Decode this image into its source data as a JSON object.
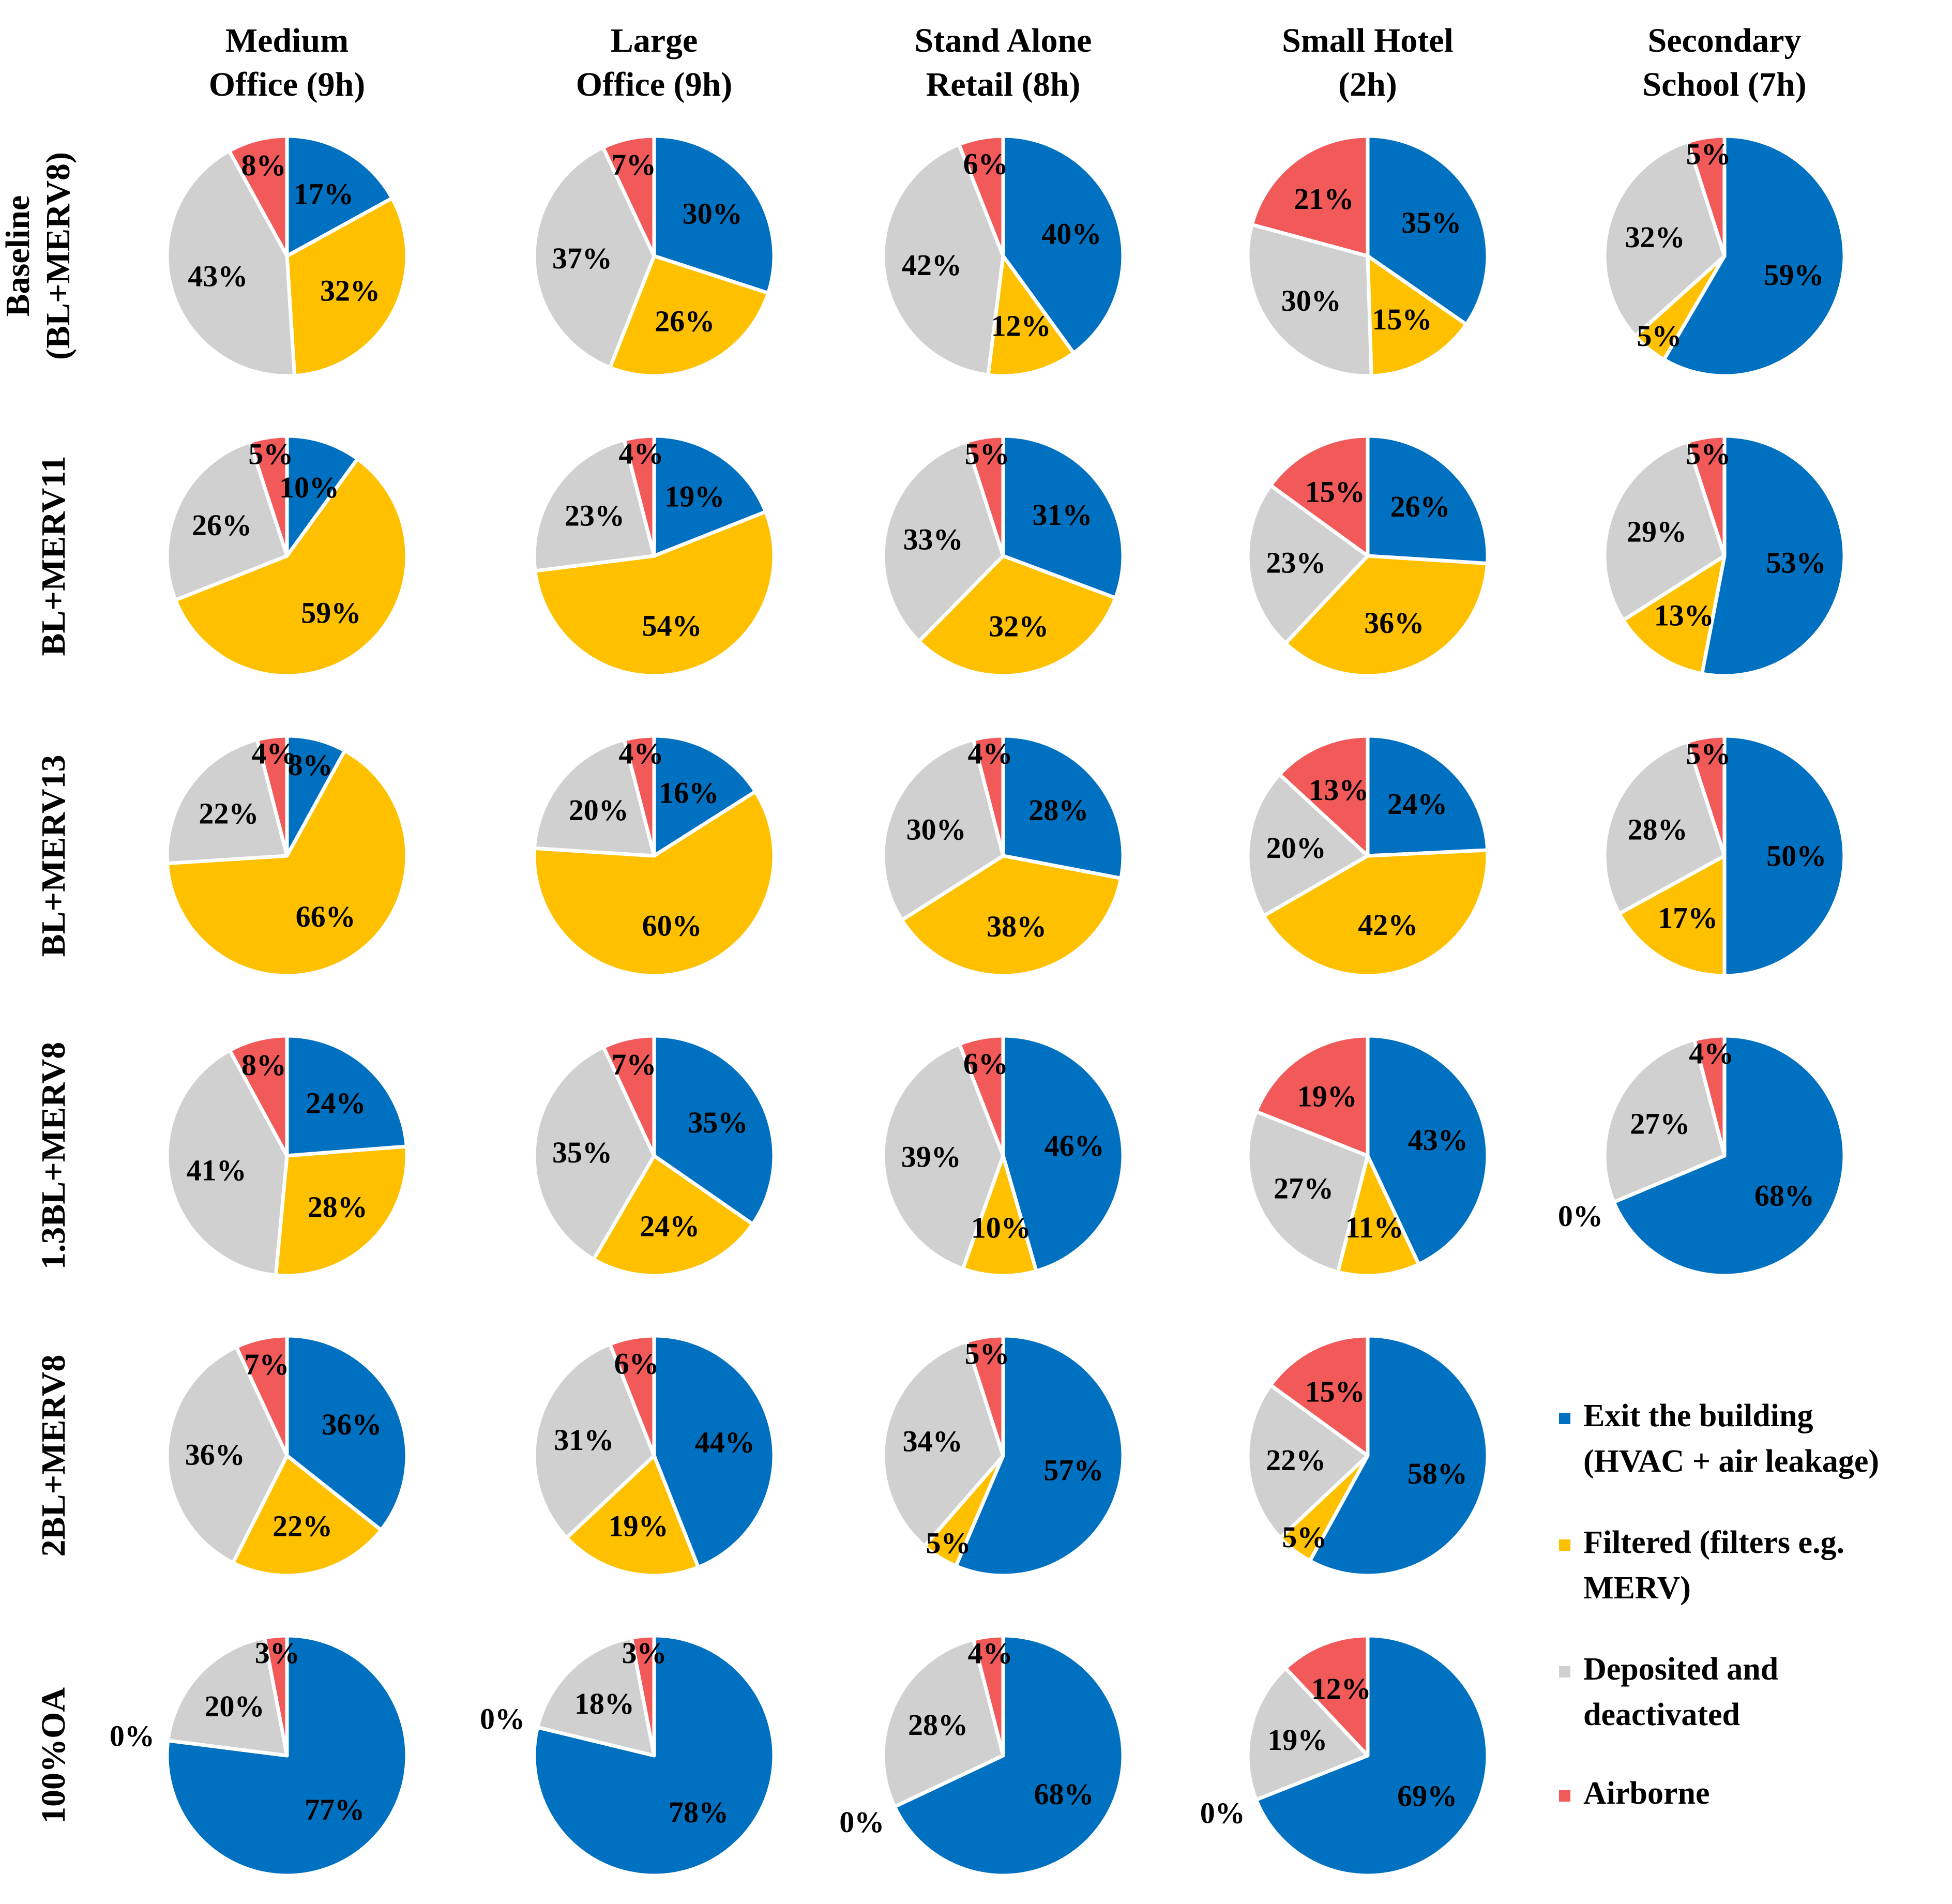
{
  "chart_data": {
    "type": "pie",
    "title": "",
    "category_order": [
      "Exit the building (HVAC + air leakage)",
      "Filtered (filters e.g. MERV)",
      "Deposited and deactivated",
      "Airborne"
    ],
    "colors": {
      "exit": "#0070c0",
      "filtered": "#ffc000",
      "deposited": "#d0d0d0",
      "airborne": "#f25a5a"
    },
    "legend": {
      "position": "right",
      "items": [
        {
          "key": "exit",
          "lines": [
            "Exit the building",
            "(HVAC + air leakage)"
          ]
        },
        {
          "key": "filtered",
          "lines": [
            "Filtered (filters e.g.",
            "MERV)"
          ]
        },
        {
          "key": "deposited",
          "lines": [
            "Deposited and",
            "deactivated"
          ]
        },
        {
          "key": "airborne",
          "lines": [
            "Airborne"
          ]
        }
      ]
    },
    "columns": [
      {
        "lines": [
          "Medium",
          "Office (9h)"
        ]
      },
      {
        "lines": [
          "Large",
          "Office (9h)"
        ]
      },
      {
        "lines": [
          "Stand Alone",
          "Retail (8h)"
        ]
      },
      {
        "lines": [
          "Small Hotel",
          "(2h)"
        ]
      },
      {
        "lines": [
          "Secondary",
          "School (7h)"
        ]
      }
    ],
    "rows": [
      {
        "lines": [
          "Baseline",
          "(BL+MERV8)"
        ]
      },
      {
        "lines": [
          "BL+MERV11"
        ]
      },
      {
        "lines": [
          "BL+MERV13"
        ]
      },
      {
        "lines": [
          "1.3BL+MERV8"
        ]
      },
      {
        "lines": [
          "2BL+MERV8"
        ]
      },
      {
        "lines": [
          "100%OA"
        ]
      }
    ],
    "pies": [
      [
        {
          "exit": 17,
          "filtered": 32,
          "deposited": 43,
          "airborne": 8
        },
        {
          "exit": 30,
          "filtered": 26,
          "deposited": 37,
          "airborne": 7
        },
        {
          "exit": 40,
          "filtered": 12,
          "deposited": 42,
          "airborne": 6
        },
        {
          "exit": 35,
          "filtered": 15,
          "deposited": 30,
          "airborne": 21
        },
        {
          "exit": 59,
          "filtered": 5,
          "deposited": 32,
          "airborne": 5
        }
      ],
      [
        {
          "exit": 10,
          "filtered": 59,
          "deposited": 26,
          "airborne": 5
        },
        {
          "exit": 19,
          "filtered": 54,
          "deposited": 23,
          "airborne": 4
        },
        {
          "exit": 31,
          "filtered": 32,
          "deposited": 33,
          "airborne": 5
        },
        {
          "exit": 26,
          "filtered": 36,
          "deposited": 23,
          "airborne": 15
        },
        {
          "exit": 53,
          "filtered": 13,
          "deposited": 29,
          "airborne": 5
        }
      ],
      [
        {
          "exit": 8,
          "filtered": 66,
          "deposited": 22,
          "airborne": 4
        },
        {
          "exit": 16,
          "filtered": 60,
          "deposited": 20,
          "airborne": 4
        },
        {
          "exit": 28,
          "filtered": 38,
          "deposited": 30,
          "airborne": 4
        },
        {
          "exit": 24,
          "filtered": 42,
          "deposited": 20,
          "airborne": 13
        },
        {
          "exit": 50,
          "filtered": 17,
          "deposited": 28,
          "airborne": 5
        }
      ],
      [
        {
          "exit": 24,
          "filtered": 28,
          "deposited": 41,
          "airborne": 8
        },
        {
          "exit": 35,
          "filtered": 24,
          "deposited": 35,
          "airborne": 7
        },
        {
          "exit": 46,
          "filtered": 10,
          "deposited": 39,
          "airborne": 6
        },
        {
          "exit": 43,
          "filtered": 11,
          "deposited": 27,
          "airborne": 19
        },
        {
          "exit": 68,
          "filtered": 0,
          "deposited": 27,
          "airborne": 4
        }
      ],
      [
        {
          "exit": 36,
          "filtered": 22,
          "deposited": 36,
          "airborne": 7
        },
        {
          "exit": 44,
          "filtered": 19,
          "deposited": 31,
          "airborne": 6
        },
        {
          "exit": 57,
          "filtered": 5,
          "deposited": 34,
          "airborne": 5
        },
        {
          "exit": 58,
          "filtered": 5,
          "deposited": 22,
          "airborne": 15
        },
        null
      ],
      [
        {
          "exit": 77,
          "filtered": 0,
          "deposited": 20,
          "airborne": 3
        },
        {
          "exit": 78,
          "filtered": 0,
          "deposited": 18,
          "airborne": 3
        },
        {
          "exit": 68,
          "filtered": 0,
          "deposited": 28,
          "airborne": 4
        },
        {
          "exit": 69,
          "filtered": 0,
          "deposited": 19,
          "airborne": 12
        },
        null
      ]
    ]
  }
}
